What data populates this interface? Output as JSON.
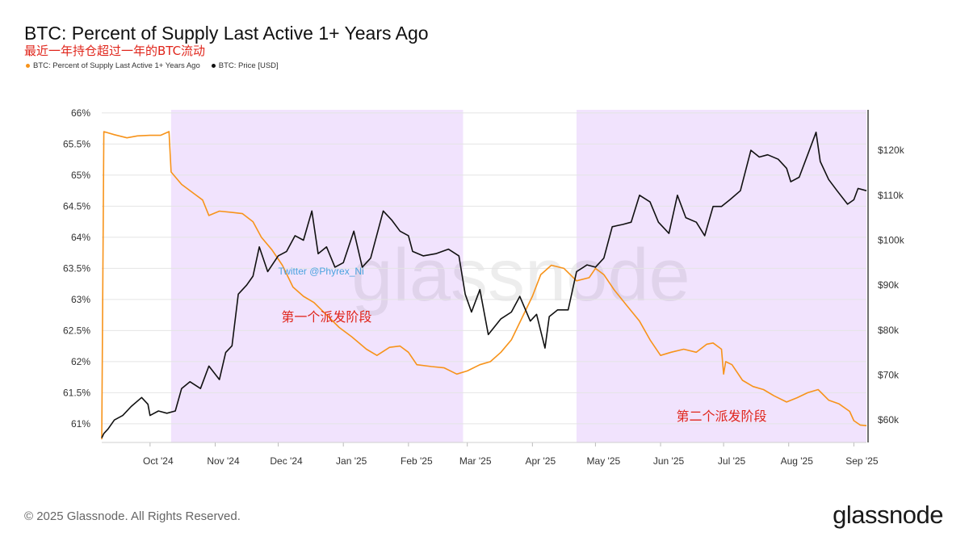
{
  "chart_data": {
    "type": "line",
    "title": "BTC: Percent of Supply Last Active 1+ Years Ago",
    "subtitle": "最近一年持仓超过一年的BTC流动",
    "x_tick_labels": [
      "Oct '24",
      "Nov '24",
      "Dec '24",
      "Jan '25",
      "Feb '25",
      "Mar '25",
      "Apr '25",
      "May '25",
      "Jun '25",
      "Jul '25",
      "Aug '25",
      "Sep '25"
    ],
    "x_tick_dates": [
      "2024-10-01",
      "2024-11-01",
      "2024-12-01",
      "2025-01-01",
      "2025-02-01",
      "2025-03-01",
      "2025-04-01",
      "2025-05-01",
      "2025-06-01",
      "2025-07-01",
      "2025-08-01",
      "2025-09-01"
    ],
    "x_range": [
      "2024-09-08",
      "2025-09-07"
    ],
    "y_left": {
      "range": [
        60.7,
        66.05
      ],
      "ticks": [
        61,
        61.5,
        62,
        62.5,
        63,
        63.5,
        64,
        64.5,
        65,
        65.5,
        66
      ],
      "tick_labels": [
        "61%",
        "61.5%",
        "62%",
        "62.5%",
        "63%",
        "63.5%",
        "64%",
        "64.5%",
        "65%",
        "65.5%",
        "66%"
      ]
    },
    "y_right": {
      "range": [
        55000,
        129000
      ],
      "ticks": [
        60000,
        70000,
        80000,
        90000,
        100000,
        110000,
        120000
      ],
      "tick_labels": [
        "$60k",
        "$70k",
        "$80k",
        "$90k",
        "$100k",
        "$110k",
        "$120k"
      ]
    },
    "grid": true,
    "legend_position": "top-left",
    "series": [
      {
        "name": "BTC: Percent of Supply Last Active 1+ Years Ago",
        "axis": "left",
        "color": "#f7931a",
        "points": [
          [
            "2024-09-08",
            60.75
          ],
          [
            "2024-09-09",
            65.7
          ],
          [
            "2024-09-14",
            65.65
          ],
          [
            "2024-09-20",
            65.6
          ],
          [
            "2024-09-25",
            65.63
          ],
          [
            "2024-10-01",
            65.64
          ],
          [
            "2024-10-06",
            65.64
          ],
          [
            "2024-10-10",
            65.7
          ],
          [
            "2024-10-11",
            65.05
          ],
          [
            "2024-10-16",
            64.85
          ],
          [
            "2024-10-22",
            64.7
          ],
          [
            "2024-10-26",
            64.6
          ],
          [
            "2024-10-29",
            64.35
          ],
          [
            "2024-11-03",
            64.42
          ],
          [
            "2024-11-09",
            64.4
          ],
          [
            "2024-11-14",
            64.38
          ],
          [
            "2024-11-19",
            64.25
          ],
          [
            "2024-11-23",
            64.0
          ],
          [
            "2024-11-28",
            63.8
          ],
          [
            "2024-12-03",
            63.55
          ],
          [
            "2024-12-08",
            63.2
          ],
          [
            "2024-12-13",
            63.05
          ],
          [
            "2024-12-18",
            62.95
          ],
          [
            "2024-12-24",
            62.75
          ],
          [
            "2024-12-30",
            62.55
          ],
          [
            "2025-01-05",
            62.4
          ],
          [
            "2025-01-12",
            62.2
          ],
          [
            "2025-01-17",
            62.1
          ],
          [
            "2025-01-23",
            62.23
          ],
          [
            "2025-01-28",
            62.25
          ],
          [
            "2025-02-01",
            62.15
          ],
          [
            "2025-02-05",
            61.95
          ],
          [
            "2025-02-12",
            61.92
          ],
          [
            "2025-02-18",
            61.9
          ],
          [
            "2025-02-24",
            61.8
          ],
          [
            "2025-03-01",
            61.85
          ],
          [
            "2025-03-07",
            61.95
          ],
          [
            "2025-03-12",
            62.0
          ],
          [
            "2025-03-17",
            62.15
          ],
          [
            "2025-03-22",
            62.35
          ],
          [
            "2025-03-27",
            62.7
          ],
          [
            "2025-04-01",
            63.05
          ],
          [
            "2025-04-05",
            63.4
          ],
          [
            "2025-04-10",
            63.55
          ],
          [
            "2025-04-16",
            63.5
          ],
          [
            "2025-04-22",
            63.3
          ],
          [
            "2025-04-28",
            63.35
          ],
          [
            "2025-05-01",
            63.5
          ],
          [
            "2025-05-05",
            63.4
          ],
          [
            "2025-05-10",
            63.15
          ],
          [
            "2025-05-16",
            62.9
          ],
          [
            "2025-05-22",
            62.65
          ],
          [
            "2025-05-27",
            62.35
          ],
          [
            "2025-06-01",
            62.1
          ],
          [
            "2025-06-06",
            62.15
          ],
          [
            "2025-06-12",
            62.2
          ],
          [
            "2025-06-18",
            62.15
          ],
          [
            "2025-06-23",
            62.28
          ],
          [
            "2025-06-26",
            62.3
          ],
          [
            "2025-06-30",
            62.2
          ],
          [
            "2025-07-01",
            61.8
          ],
          [
            "2025-07-02",
            62.0
          ],
          [
            "2025-07-05",
            61.95
          ],
          [
            "2025-07-10",
            61.7
          ],
          [
            "2025-07-15",
            61.6
          ],
          [
            "2025-07-20",
            61.55
          ],
          [
            "2025-07-25",
            61.45
          ],
          [
            "2025-07-31",
            61.35
          ],
          [
            "2025-08-05",
            61.42
          ],
          [
            "2025-08-10",
            61.5
          ],
          [
            "2025-08-15",
            61.55
          ],
          [
            "2025-08-20",
            61.38
          ],
          [
            "2025-08-25",
            61.32
          ],
          [
            "2025-08-30",
            61.2
          ],
          [
            "2025-09-01",
            61.05
          ],
          [
            "2025-09-04",
            60.98
          ],
          [
            "2025-09-07",
            60.97
          ]
        ]
      },
      {
        "name": "BTC: Price [USD]",
        "axis": "right",
        "color": "#111111",
        "points": [
          [
            "2024-09-08",
            56000
          ],
          [
            "2024-09-09",
            57000
          ],
          [
            "2024-09-11",
            58000
          ],
          [
            "2024-09-14",
            60000
          ],
          [
            "2024-09-18",
            61000
          ],
          [
            "2024-09-22",
            63000
          ],
          [
            "2024-09-27",
            65000
          ],
          [
            "2024-09-30",
            63500
          ],
          [
            "2024-10-01",
            61000
          ],
          [
            "2024-10-05",
            62000
          ],
          [
            "2024-10-09",
            61500
          ],
          [
            "2024-10-13",
            62000
          ],
          [
            "2024-10-16",
            67000
          ],
          [
            "2024-10-20",
            68500
          ],
          [
            "2024-10-25",
            67000
          ],
          [
            "2024-10-29",
            72000
          ],
          [
            "2024-11-03",
            69000
          ],
          [
            "2024-11-06",
            75000
          ],
          [
            "2024-11-09",
            76500
          ],
          [
            "2024-11-12",
            88000
          ],
          [
            "2024-11-16",
            90000
          ],
          [
            "2024-11-19",
            92000
          ],
          [
            "2024-11-22",
            98500
          ],
          [
            "2024-11-26",
            93000
          ],
          [
            "2024-12-01",
            96500
          ],
          [
            "2024-12-05",
            97500
          ],
          [
            "2024-12-09",
            101000
          ],
          [
            "2024-12-13",
            100000
          ],
          [
            "2024-12-17",
            106500
          ],
          [
            "2024-12-20",
            97000
          ],
          [
            "2024-12-24",
            98500
          ],
          [
            "2024-12-28",
            94000
          ],
          [
            "2025-01-01",
            95000
          ],
          [
            "2025-01-06",
            102000
          ],
          [
            "2025-01-10",
            94000
          ],
          [
            "2025-01-14",
            96000
          ],
          [
            "2025-01-20",
            106500
          ],
          [
            "2025-01-24",
            104500
          ],
          [
            "2025-01-28",
            102000
          ],
          [
            "2025-02-01",
            101000
          ],
          [
            "2025-02-03",
            97500
          ],
          [
            "2025-02-08",
            96500
          ],
          [
            "2025-02-14",
            97000
          ],
          [
            "2025-02-20",
            98000
          ],
          [
            "2025-02-25",
            96500
          ],
          [
            "2025-02-28",
            88000
          ],
          [
            "2025-03-03",
            84000
          ],
          [
            "2025-03-07",
            89000
          ],
          [
            "2025-03-11",
            79000
          ],
          [
            "2025-03-17",
            82500
          ],
          [
            "2025-03-22",
            84000
          ],
          [
            "2025-03-26",
            87500
          ],
          [
            "2025-03-31",
            82000
          ],
          [
            "2025-04-03",
            83500
          ],
          [
            "2025-04-07",
            76000
          ],
          [
            "2025-04-09",
            83000
          ],
          [
            "2025-04-13",
            84500
          ],
          [
            "2025-04-18",
            84500
          ],
          [
            "2025-04-22",
            93000
          ],
          [
            "2025-04-27",
            94500
          ],
          [
            "2025-05-01",
            94000
          ],
          [
            "2025-05-05",
            96000
          ],
          [
            "2025-05-09",
            103000
          ],
          [
            "2025-05-14",
            103500
          ],
          [
            "2025-05-18",
            104000
          ],
          [
            "2025-05-22",
            110000
          ],
          [
            "2025-05-27",
            108500
          ],
          [
            "2025-05-31",
            104000
          ],
          [
            "2025-06-05",
            101500
          ],
          [
            "2025-06-09",
            110000
          ],
          [
            "2025-06-13",
            105000
          ],
          [
            "2025-06-18",
            104000
          ],
          [
            "2025-06-22",
            101000
          ],
          [
            "2025-06-26",
            107500
          ],
          [
            "2025-06-30",
            107500
          ],
          [
            "2025-07-04",
            109000
          ],
          [
            "2025-07-09",
            111000
          ],
          [
            "2025-07-14",
            120000
          ],
          [
            "2025-07-18",
            118500
          ],
          [
            "2025-07-22",
            119000
          ],
          [
            "2025-07-27",
            118000
          ],
          [
            "2025-07-31",
            116000
          ],
          [
            "2025-08-02",
            113000
          ],
          [
            "2025-08-06",
            114000
          ],
          [
            "2025-08-10",
            119000
          ],
          [
            "2025-08-14",
            124000
          ],
          [
            "2025-08-16",
            117500
          ],
          [
            "2025-08-20",
            113500
          ],
          [
            "2025-08-24",
            111000
          ],
          [
            "2025-08-29",
            108000
          ],
          [
            "2025-09-01",
            109000
          ],
          [
            "2025-09-03",
            111500
          ],
          [
            "2025-09-07",
            111000
          ]
        ]
      }
    ],
    "highlight_ranges": [
      {
        "from": "2024-10-11",
        "to": "2025-02-27",
        "color": "#e9d2fb",
        "label": "第一个派发阶段",
        "label_at": [
          "2024-12-24",
          62.65
        ]
      },
      {
        "from": "2025-04-22",
        "to": "2025-09-07",
        "color": "#e9d2fb",
        "label": "第二个派发阶段",
        "label_at": [
          "2025-06-30",
          61.05
        ]
      }
    ],
    "annotations": [
      {
        "text": "Twitter @Phyrex_Ni",
        "at": [
          "2024-12-01",
          63.4
        ]
      }
    ],
    "watermark": "glassnode"
  },
  "footer": {
    "copyright": "© 2025 Glassnode. All Rights Reserved.",
    "logo": "glassnode"
  }
}
